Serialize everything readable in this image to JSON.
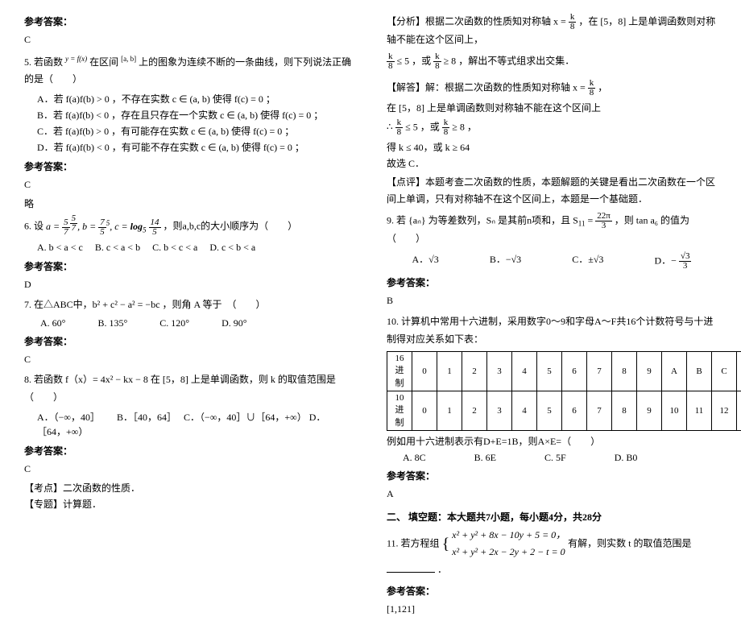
{
  "left": {
    "ans_label": "参考答案：",
    "ans_C": "C",
    "ans_D": "D",
    "blank": "略",
    "q5": {
      "stem_pre": "5. 若函数",
      "fx": "y = f(x)",
      "stem_mid": "在区间",
      "ab": "[a, b]",
      "stem_post": "上的图象为连续不断的一条曲线，则下列说法正确的是（　　）",
      "optA": "A．若 f(a)f(b) > 0 ，不存在实数 c ∈ (a, b) 使得 f(c) = 0 ；",
      "optB": "B．若 f(a)f(b) < 0 ，存在且只存在一个实数 c ∈ (a, b) 使得 f(c) = 0 ；",
      "optC": "C．若 f(a)f(b) > 0 ，有可能存在实数 c ∈ (a, b) 使得 f(c) = 0 ；",
      "optD": "D．若 f(a)f(b) < 0 ，有可能不存在实数 c ∈ (a, b) 使得 f(c) = 0 ；"
    },
    "q6": {
      "pre": "6. 设 ",
      "a_expr": "a = (5/7)^(5/7),  b = (7/5)^5,  c = log₅(14/5)",
      "post": "，则a,b,c的大小顺序为（　　）",
      "optA": "A. b < a < c",
      "optB": "B. c < a < b",
      "optC": "C. b < c < a",
      "optD": "D. c < b < a"
    },
    "q7": {
      "stem": "7. 在△ABC中，b² + c² − a² = −bc ，则角 A 等于　（　　）",
      "optA": "A. 60°",
      "optB": "B. 135°",
      "optC": "C. 120°",
      "optD": "D. 90°"
    },
    "q8": {
      "stem": "8. 若函数 f（x）= 4x² − kx − 8 在 [5，8] 上是单调函数，则 k 的取值范围是（　　）",
      "optA": "A．（−∞，40］",
      "optB": "B．［40，64］",
      "optC": "C．（−∞，40］∪［64，+∞）",
      "optD": "D．［64，+∞）",
      "kaodian_label": "【考点】",
      "kaodian": "二次函数的性质．",
      "zhuanti_label": "【专题】",
      "zhuanti": "计算题．"
    }
  },
  "right": {
    "fenxi_label": "【分析】",
    "fenxi_1": "根据二次函数的性质知对称轴 ",
    "axis": "x = k/8",
    "fenxi_2": "，在 [5，8] 上是单调函数则对称轴不能在这个区间上，",
    "ineq": "k/8 ≤ 5 ，或 k/8 ≥ 8",
    "fenxi_3": "，解出不等式组求出交集．",
    "jieda_label": "【解答】",
    "jieda_1": "解：根据二次函数的性质知对称轴 x = k/8 ，",
    "jieda_2": "在 [5，8] 上是单调函数则对称轴不能在这个区间上",
    "jieda_3": "∴ k/8 ≤ 5 ，或 k/8 ≥ 8 ，",
    "jieda_4": "得 k ≤ 40，或 k ≥ 64",
    "jieda_5": "故选 C．",
    "dianping_label": "【点评】",
    "dianping": "本题考查二次函数的性质，本题解题的关键是看出二次函数在一个区间上单调，只有对称轴不在这个区间上，本题是一个基础题．",
    "q9": {
      "stem_pre": "9. 若 {aₙ} 为等差数列，Sₙ 是其前n项和，且 ",
      "s11": "S₁₁ = 22π/3",
      "stem_post": " ，则 tan a₆ 的值为（　　）",
      "optA": "A．√3",
      "optB": "B．−√3",
      "optC": "C．±√3",
      "optD": "D．−√3/3"
    },
    "ans_label": "参考答案：",
    "ans_B": "B",
    "ans_A": "A",
    "q10": {
      "stem": "10. 计算机中常用十六进制，采用数字0～9和字母A～F共16个计数符号与十进制得对应关系如下表：",
      "row1_label": "16进制",
      "row1": [
        "0",
        "1",
        "2",
        "3",
        "4",
        "5",
        "6",
        "7",
        "8",
        "9",
        "A",
        "B",
        "C",
        "D",
        "E",
        "F"
      ],
      "row2_label": "10进制",
      "row2": [
        "0",
        "1",
        "2",
        "3",
        "4",
        "5",
        "6",
        "7",
        "8",
        "9",
        "10",
        "11",
        "12",
        "13",
        "14",
        "15"
      ],
      "example": "例如用十六进制表示有D+E=1B，则A×E=（　　）",
      "optA": "A. 8C",
      "optB": "B. 6E",
      "optC": "C. 5F",
      "optD": "D. B0"
    },
    "section2": "二、 填空题：本大题共7小题，每小题4分，共28分",
    "q11": {
      "pre": "11. 若方程组 ",
      "eq1": "x² + y² + 8x − 10y + 5 = 0，",
      "eq2": "x² + y² + 2x − 2y + 2 − t = 0",
      "post": " 有解，则实数 t 的取值范围是",
      "end": "．"
    },
    "ans11": "[1,121]"
  }
}
